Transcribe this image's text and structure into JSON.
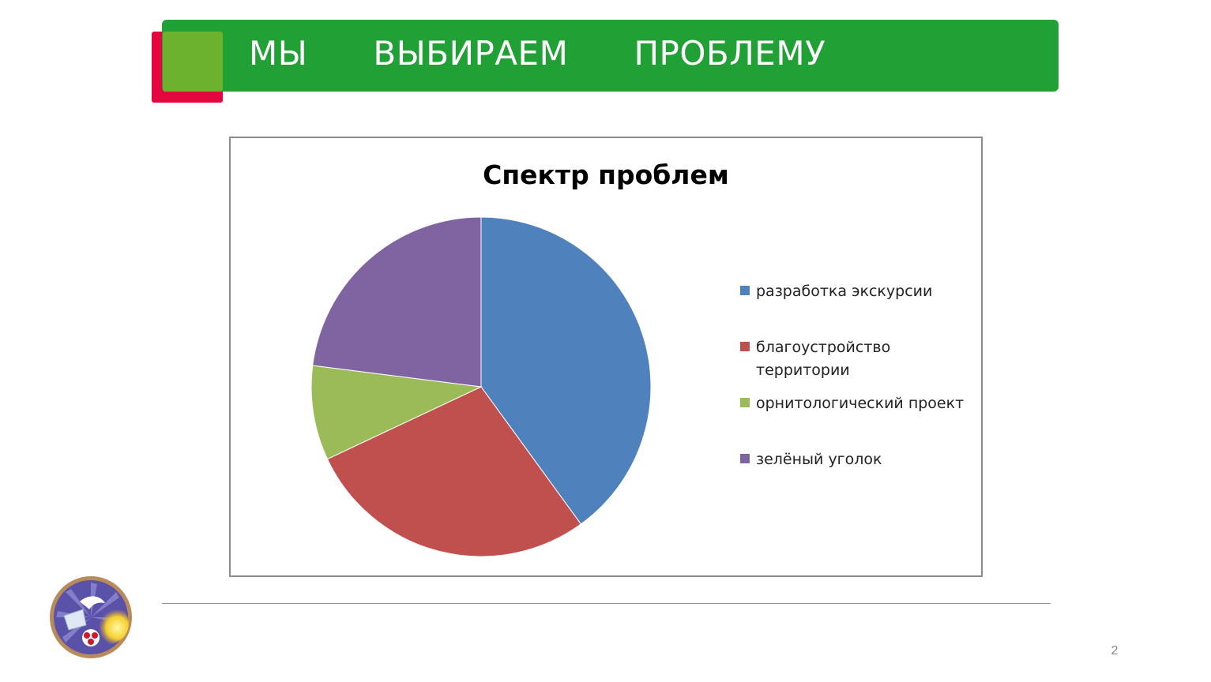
{
  "slide": {
    "title": "МЫ      ВЫБИРАЕМ      ПРОБЛЕМУ",
    "page_number": "2"
  },
  "colors": {
    "title_bar": "#20a035",
    "accent_green": "#6db22f",
    "accent_red": "#e3063f"
  },
  "logo": {
    "icon": "school-emblem-icon"
  },
  "chart_data": {
    "type": "pie",
    "title": "Спектр проблем",
    "legend_position": "right",
    "categories": [
      "разработка экскурсии",
      "благоустройство территории",
      "орнитологический проект",
      "зелёный уголок"
    ],
    "legend_lines": [
      [
        "разработка экскурсии"
      ],
      [
        "благоустройство",
        "территории"
      ],
      [
        "орнитологический проект"
      ],
      [
        "зелёный уголок"
      ]
    ],
    "values": [
      40,
      28,
      9,
      23
    ],
    "colors": [
      "#4f81bd",
      "#c0504d",
      "#9bbb59",
      "#8064a2"
    ]
  }
}
